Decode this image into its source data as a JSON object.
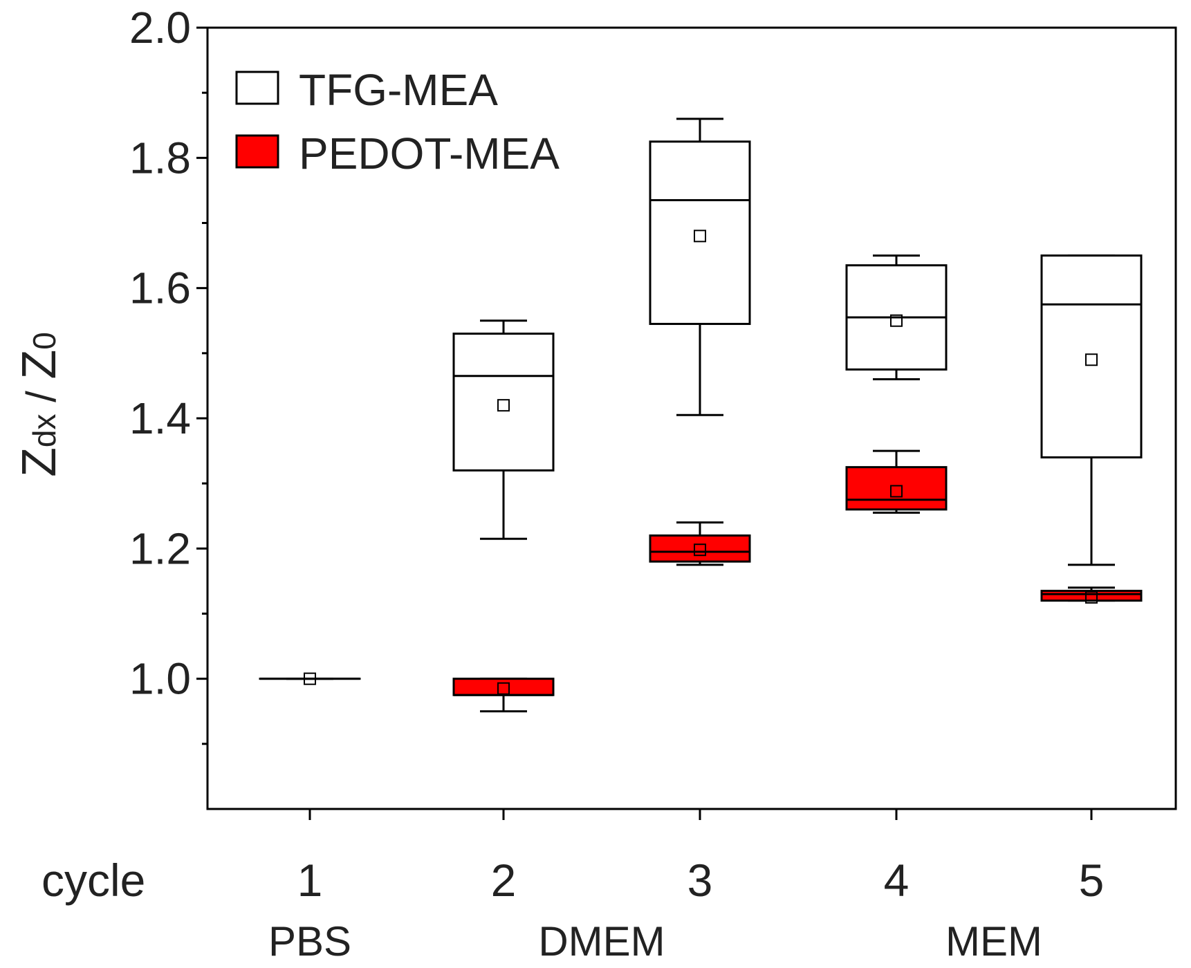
{
  "chart_data": {
    "type": "box",
    "title": "",
    "xlabel": "cycle",
    "ylabel": {
      "main": "Z",
      "sub": "dx",
      "sep": " / ",
      "main2": "Z",
      "sub2": "0"
    },
    "ylim": [
      0.8,
      2.0
    ],
    "yticks": [
      "1.0",
      "1.2",
      "1.4",
      "1.6",
      "1.8",
      "2.0"
    ],
    "ytick_values": [
      1.0,
      1.2,
      1.4,
      1.6,
      1.8,
      2.0
    ],
    "yminor_values": [
      0.9,
      1.1,
      1.3,
      1.5,
      1.7,
      1.9
    ],
    "categories": [
      "1",
      "2",
      "3",
      "4",
      "5"
    ],
    "media": [
      {
        "label": "PBS",
        "cycle": 1
      },
      {
        "label": "DMEM",
        "cycle": 2.5
      },
      {
        "label": "MEM",
        "cycle": 4.5
      }
    ],
    "colors": {
      "TFG-MEA": "#ffffff",
      "PEDOT-MEA": "#ff0000",
      "stroke": "#000000"
    },
    "legend": {
      "position": "top-left",
      "entries": [
        "TFG-MEA",
        "PEDOT-MEA"
      ]
    },
    "series": [
      {
        "name": "TFG-MEA",
        "boxes": [
          {
            "cycle": 1,
            "whisker_low": 1.0,
            "q1": 1.0,
            "median": 1.0,
            "q3": 1.0,
            "whisker_high": 1.0,
            "mean": 1.0
          },
          {
            "cycle": 2,
            "whisker_low": 1.215,
            "q1": 1.32,
            "median": 1.465,
            "q3": 1.53,
            "whisker_high": 1.55,
            "mean": 1.42
          },
          {
            "cycle": 3,
            "whisker_low": 1.405,
            "q1": 1.545,
            "median": 1.735,
            "q3": 1.825,
            "whisker_high": 1.86,
            "mean": 1.68
          },
          {
            "cycle": 4,
            "whisker_low": 1.46,
            "q1": 1.475,
            "median": 1.555,
            "q3": 1.635,
            "whisker_high": 1.65,
            "mean": 1.55
          },
          {
            "cycle": 5,
            "whisker_low": 1.175,
            "q1": 1.34,
            "median": 1.575,
            "q3": 1.65,
            "whisker_high": 1.65,
            "mean": 1.49
          }
        ]
      },
      {
        "name": "PEDOT-MEA",
        "boxes": [
          {
            "cycle": 2,
            "whisker_low": 0.95,
            "q1": 0.975,
            "median": 0.975,
            "q3": 1.0,
            "whisker_high": 1.0,
            "mean": 0.985
          },
          {
            "cycle": 3,
            "whisker_low": 1.175,
            "q1": 1.18,
            "median": 1.195,
            "q3": 1.22,
            "whisker_high": 1.24,
            "mean": 1.198
          },
          {
            "cycle": 4,
            "whisker_low": 1.255,
            "q1": 1.26,
            "median": 1.275,
            "q3": 1.325,
            "whisker_high": 1.35,
            "mean": 1.288
          },
          {
            "cycle": 5,
            "whisker_low": 1.12,
            "q1": 1.12,
            "median": 1.13,
            "q3": 1.135,
            "whisker_high": 1.14,
            "mean": 1.125
          }
        ]
      }
    ]
  }
}
